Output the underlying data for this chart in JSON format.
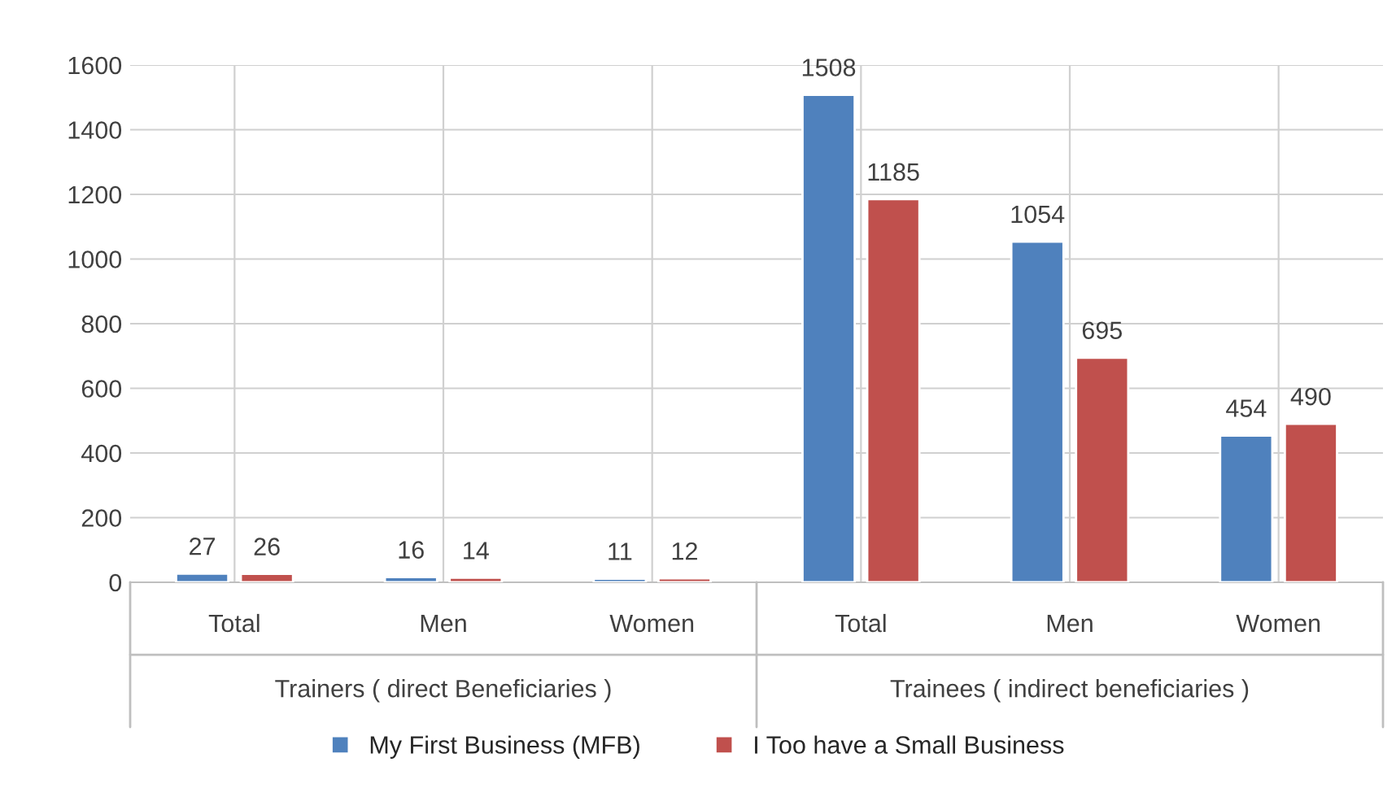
{
  "chart_data": {
    "type": "bar",
    "categories": [
      "Total",
      "Men",
      "Women",
      "Total",
      "Men",
      "Women"
    ],
    "series": [
      {
        "name": "My First Business (MFB)",
        "color": "#4f81bd",
        "values": [
          27,
          16,
          11,
          1508,
          1054,
          454
        ]
      },
      {
        "name": "I Too have a Small Business",
        "color": "#c0504d",
        "values": [
          26,
          14,
          12,
          1185,
          695,
          490
        ]
      }
    ],
    "annotations": [
      "Trainers ( direct Beneficiaries )",
      "Trainees ( indirect beneficiaries )"
    ],
    "ylim": [
      0,
      1600
    ],
    "yticks": [
      0,
      200,
      400,
      600,
      800,
      1000,
      1200,
      1400,
      1600
    ],
    "data_labels": true,
    "grid": true,
    "legend": "bottom"
  }
}
